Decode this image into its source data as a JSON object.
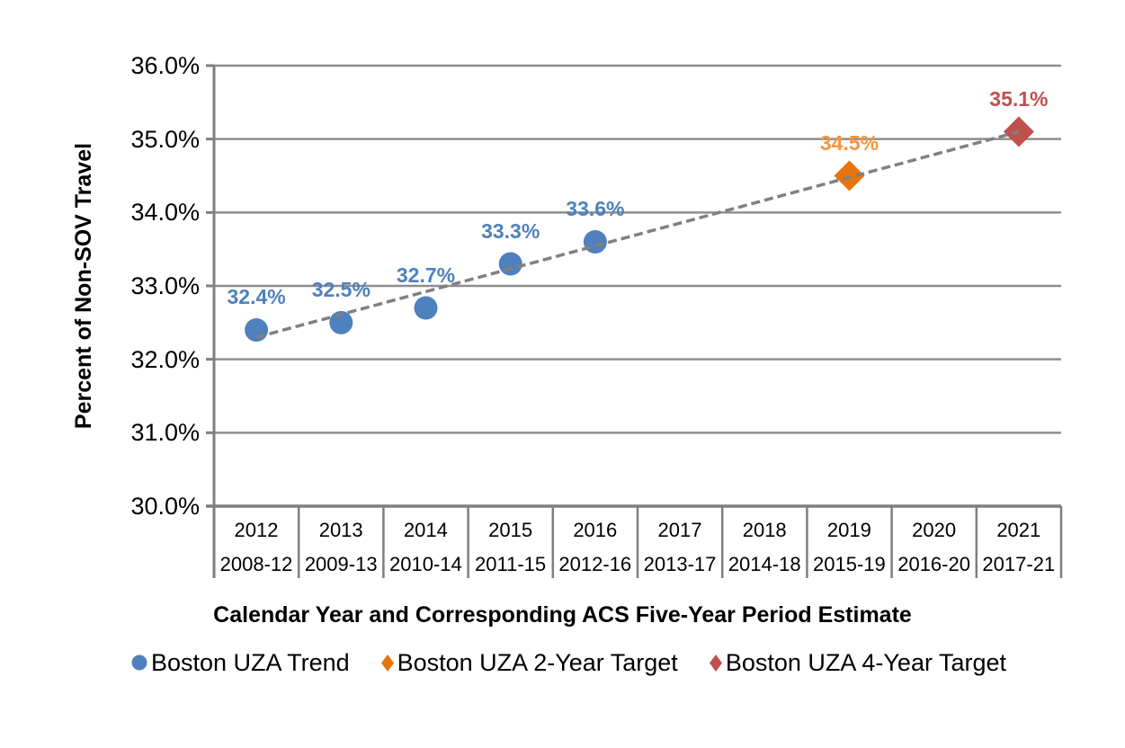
{
  "chart_data": {
    "type": "scatter",
    "title": "",
    "xlabel": "Calendar Year and Corresponding ACS Five-Year Period Estimate",
    "ylabel": "Percent of Non-SOV Travel",
    "ylim": [
      30.0,
      36.0
    ],
    "grid": "horizontal",
    "legend_position": "bottom",
    "axis_color": "#7F7F7F",
    "gridline_color": "#8E8E8E",
    "yticks": [
      {
        "label": "36.0%",
        "value": 36.0
      },
      {
        "label": "35.0%",
        "value": 35.0
      },
      {
        "label": "34.0%",
        "value": 34.0
      },
      {
        "label": "33.0%",
        "value": 33.0
      },
      {
        "label": "32.0%",
        "value": 32.0
      },
      {
        "label": "31.0%",
        "value": 31.0
      },
      {
        "label": "30.0%",
        "value": 30.0
      }
    ],
    "categories": [
      {
        "year": "2012",
        "period": "2008-12"
      },
      {
        "year": "2013",
        "period": "2009-13"
      },
      {
        "year": "2014",
        "period": "2010-14"
      },
      {
        "year": "2015",
        "period": "2011-15"
      },
      {
        "year": "2016",
        "period": "2012-16"
      },
      {
        "year": "2017",
        "period": "2013-17"
      },
      {
        "year": "2018",
        "period": "2014-18"
      },
      {
        "year": "2019",
        "period": "2015-19"
      },
      {
        "year": "2020",
        "period": "2016-20"
      },
      {
        "year": "2021",
        "period": "2017-21"
      }
    ],
    "series": [
      {
        "name": "Boston UZA Trend",
        "marker": "circle",
        "color": "#4E81BD",
        "label_color": "#4E81BD",
        "points": [
          {
            "year": "2012",
            "value": 32.4,
            "label": "32.4%"
          },
          {
            "year": "2013",
            "value": 32.5,
            "label": "32.5%"
          },
          {
            "year": "2014",
            "value": 32.7,
            "label": "32.7%"
          },
          {
            "year": "2015",
            "value": 33.3,
            "label": "33.3%"
          },
          {
            "year": "2016",
            "value": 33.6,
            "label": "33.6%"
          }
        ]
      },
      {
        "name": "Boston UZA 2-Year Target",
        "marker": "diamond",
        "color": "#E8740A",
        "label_color": "#F5963C",
        "points": [
          {
            "year": "2019",
            "value": 34.5,
            "label": "34.5%"
          }
        ]
      },
      {
        "name": "Boston UZA 4-Year Target",
        "marker": "diamond",
        "color": "#C0504D",
        "label_color": "#C0504D",
        "points": [
          {
            "year": "2021",
            "value": 35.1,
            "label": "35.1%"
          }
        ]
      }
    ],
    "trendline": {
      "style": "dashed",
      "color": "#808080",
      "from": {
        "year": "2012",
        "value": 32.3
      },
      "to": {
        "year": "2021",
        "value": 35.1
      }
    }
  }
}
